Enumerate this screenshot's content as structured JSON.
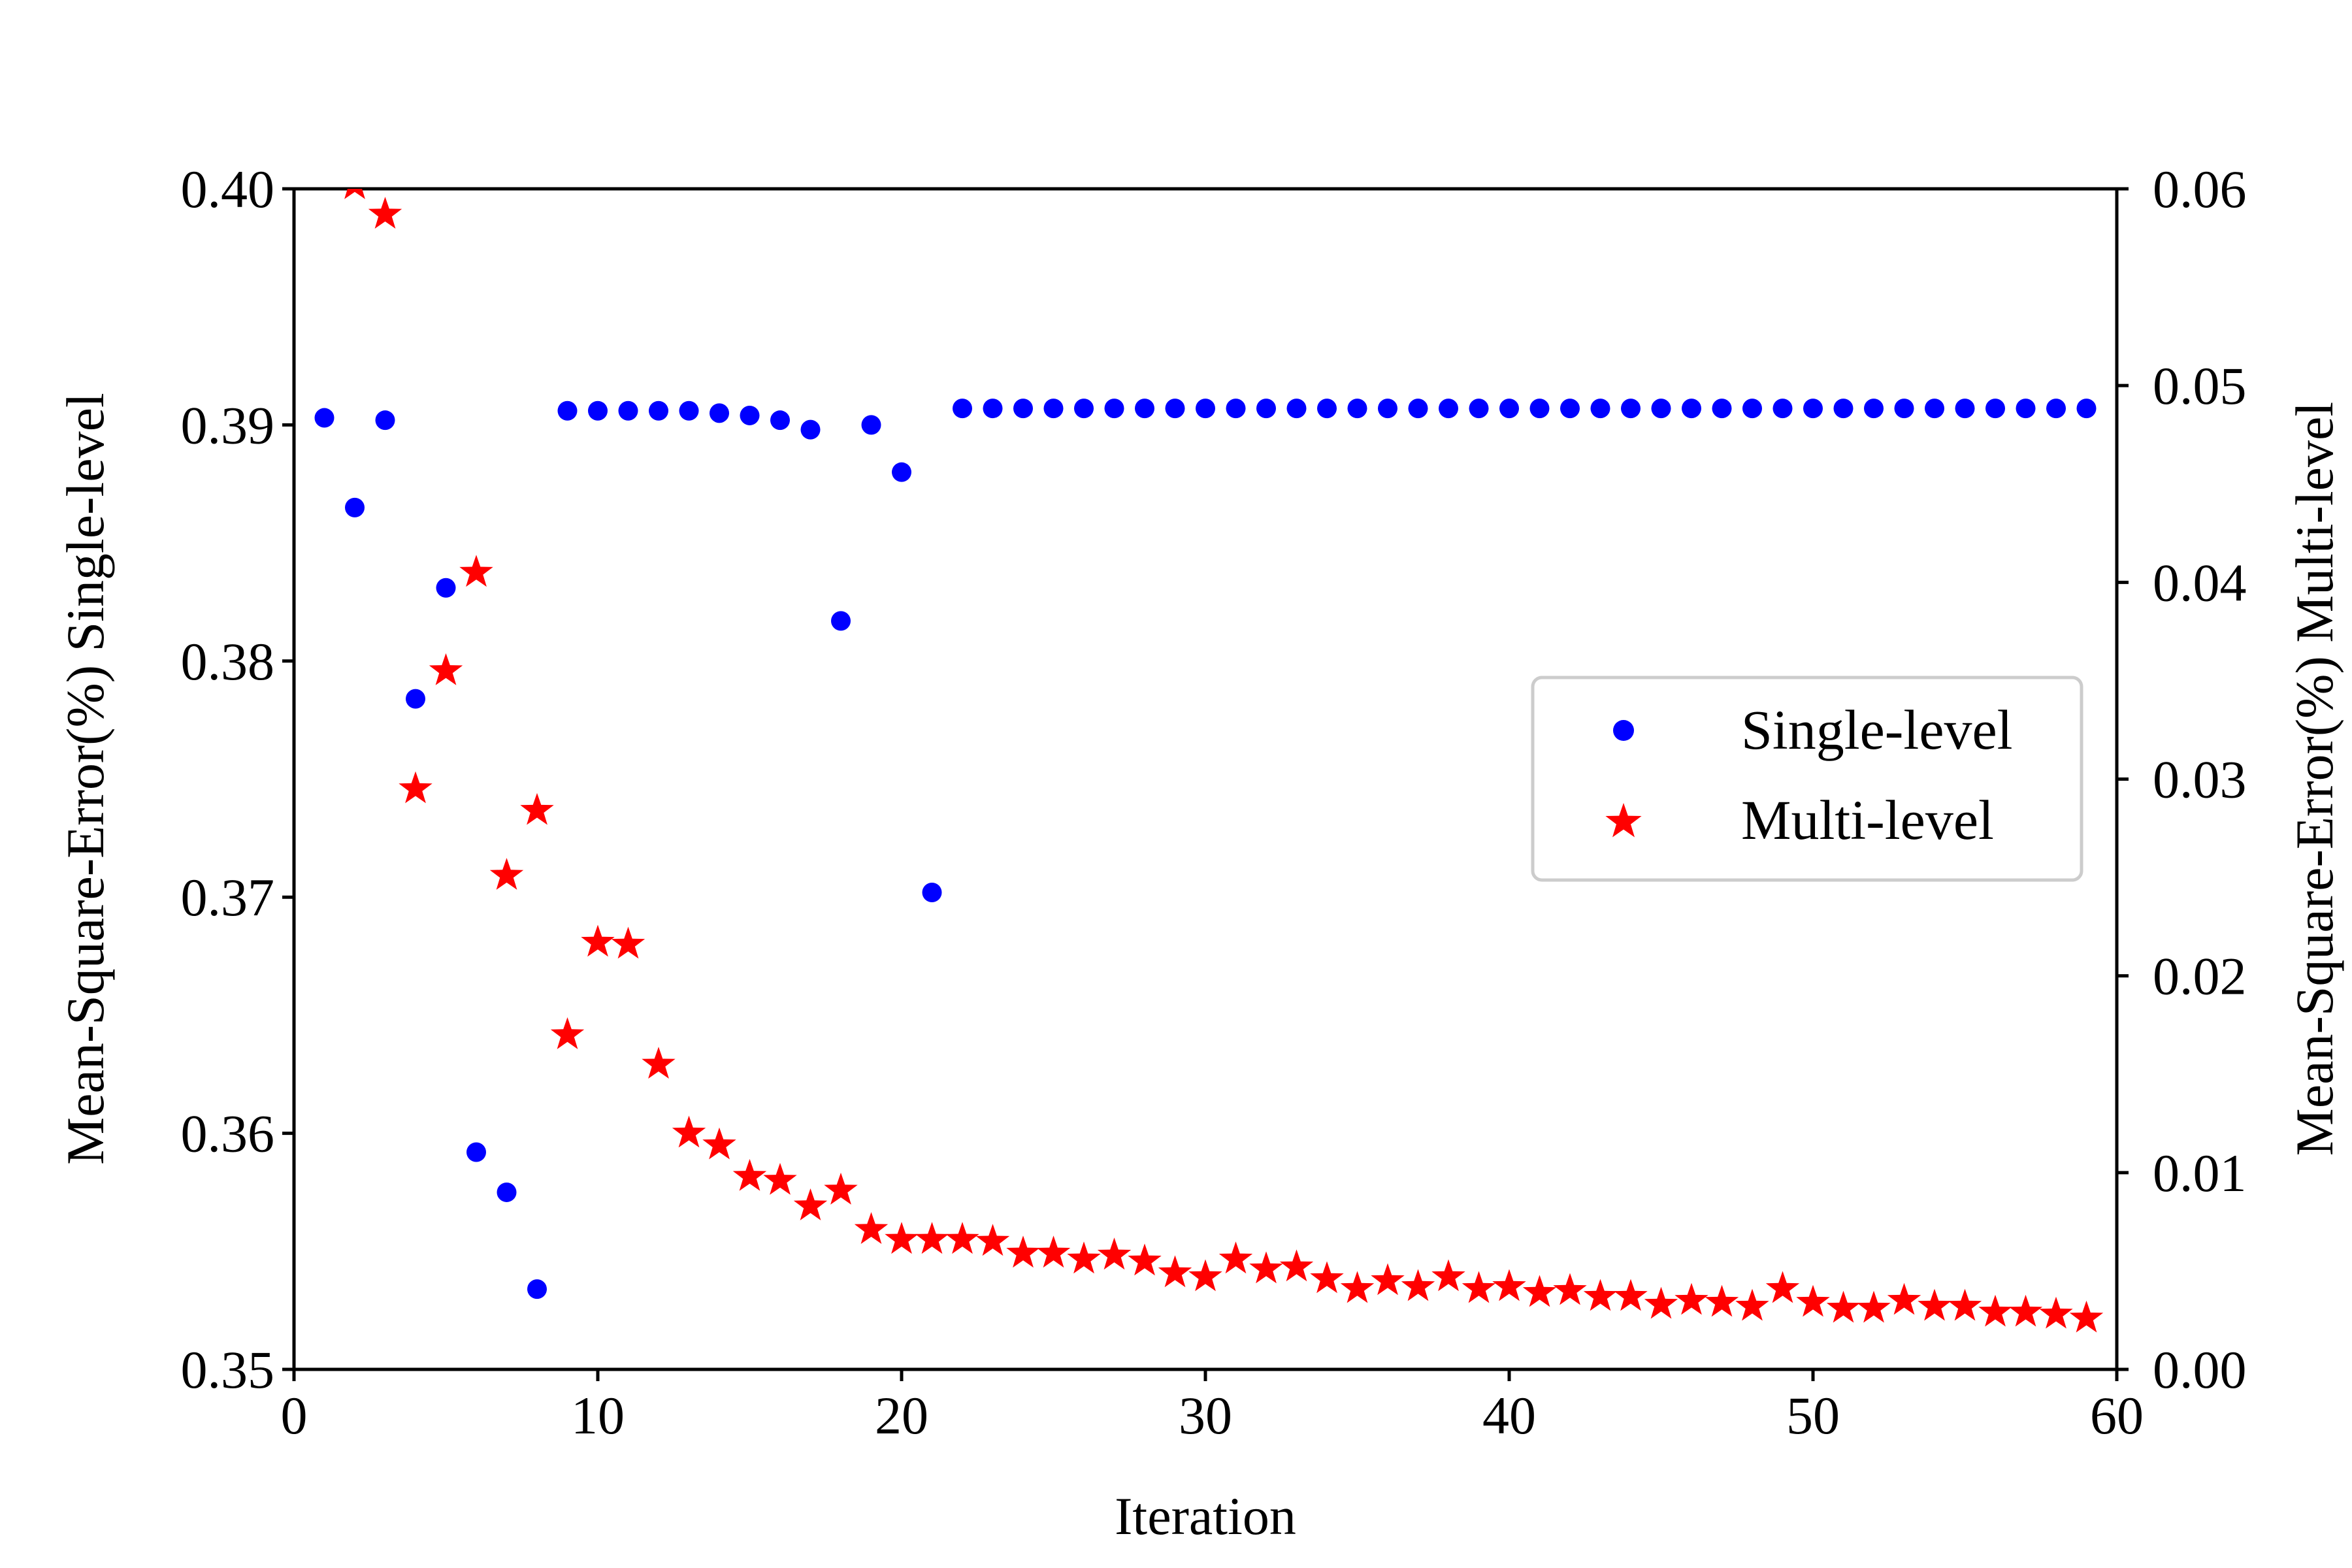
{
  "chart_data": {
    "type": "scatter",
    "title": "",
    "xlabel": "Iteration",
    "ylabel_left": "Mean-Square-Error(%) Single-level",
    "ylabel_right": "Mean-Square-Error(%) Multi-level",
    "xlim": [
      0,
      60
    ],
    "ylim_left": [
      0.35,
      0.4
    ],
    "ylim_right": [
      0.0,
      0.06
    ],
    "x_ticks": [
      "0",
      "10",
      "20",
      "30",
      "40",
      "50",
      "60"
    ],
    "y_left_ticks": [
      "0.35",
      "0.36",
      "0.37",
      "0.38",
      "0.39",
      "0.40"
    ],
    "y_right_ticks": [
      "0.00",
      "0.01",
      "0.02",
      "0.03",
      "0.04",
      "0.05",
      "0.06"
    ],
    "grid": false,
    "legend_position": "center-right",
    "series": [
      {
        "name": "Single-level",
        "axis": "left",
        "marker": "circle",
        "color": "#0000ff",
        "x": [
          1,
          2,
          3,
          4,
          5,
          6,
          7,
          8,
          9,
          10,
          11,
          12,
          13,
          14,
          15,
          16,
          17,
          18,
          19,
          20,
          21,
          22,
          23,
          24,
          25,
          26,
          27,
          28,
          29,
          30,
          31,
          32,
          33,
          34,
          35,
          36,
          37,
          38,
          39,
          40,
          41,
          42,
          43,
          44,
          45,
          46,
          47,
          48,
          49,
          50,
          51,
          52,
          53,
          54,
          55,
          56,
          57,
          58,
          59
        ],
        "y": [
          0.3903,
          0.3865,
          0.3902,
          0.3784,
          0.3831,
          0.3592,
          0.3575,
          0.3534,
          0.3906,
          0.3906,
          0.3906,
          0.3906,
          0.3906,
          0.3905,
          0.3904,
          0.3902,
          0.3898,
          0.3817,
          0.39,
          0.388,
          0.3702,
          0.3907,
          0.3907,
          0.3907,
          0.3907,
          0.3907,
          0.3907,
          0.3907,
          0.3907,
          0.3907,
          0.3907,
          0.3907,
          0.3907,
          0.3907,
          0.3907,
          0.3907,
          0.3907,
          0.3907,
          0.3907,
          0.3907,
          0.3907,
          0.3907,
          0.3907,
          0.3907,
          0.3907,
          0.3907,
          0.3907,
          0.3907,
          0.3907,
          0.3907,
          0.3907,
          0.3907,
          0.3907,
          0.3907,
          0.3907,
          0.3907,
          0.3907,
          0.3907,
          0.3907
        ]
      },
      {
        "name": "Multi-level",
        "axis": "right",
        "marker": "star",
        "color": "#ff0000",
        "x": [
          2,
          3,
          4,
          5,
          6,
          7,
          8,
          9,
          10,
          11,
          12,
          13,
          14,
          15,
          16,
          17,
          18,
          19,
          20,
          21,
          22,
          23,
          24,
          25,
          26,
          27,
          28,
          29,
          30,
          31,
          32,
          33,
          34,
          35,
          36,
          37,
          38,
          39,
          40,
          41,
          42,
          43,
          44,
          45,
          46,
          47,
          48,
          49,
          50,
          51,
          52,
          53,
          54,
          55,
          56,
          57,
          58,
          59
        ],
        "y": [
          0.0602,
          0.0587,
          0.0295,
          0.0355,
          0.0405,
          0.0251,
          0.0284,
          0.017,
          0.0217,
          0.0216,
          0.0155,
          0.012,
          0.0114,
          0.0098,
          0.0096,
          0.0083,
          0.0091,
          0.0071,
          0.0066,
          0.0066,
          0.0066,
          0.0065,
          0.0059,
          0.0059,
          0.0056,
          0.0058,
          0.0055,
          0.0049,
          0.0047,
          0.0056,
          0.0051,
          0.0052,
          0.0046,
          0.0041,
          0.0045,
          0.0042,
          0.0047,
          0.0041,
          0.0042,
          0.0039,
          0.004,
          0.0037,
          0.0037,
          0.0033,
          0.0035,
          0.0034,
          0.0032,
          0.0041,
          0.0034,
          0.0031,
          0.0031,
          0.0035,
          0.0032,
          0.0032,
          0.0029,
          0.0029,
          0.0028,
          0.0026
        ]
      }
    ]
  }
}
